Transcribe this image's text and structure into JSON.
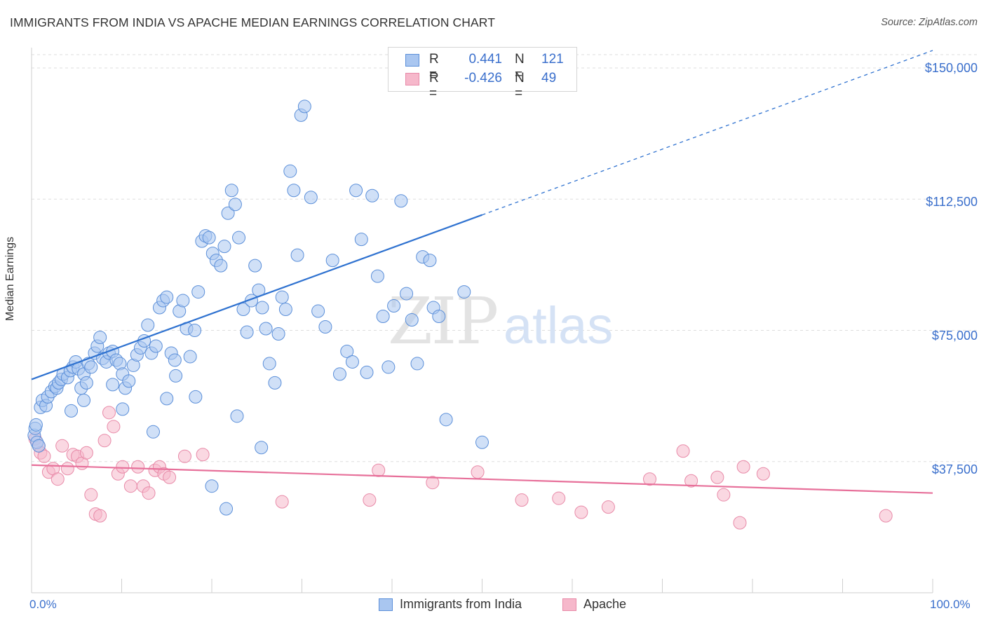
{
  "title": "IMMIGRANTS FROM INDIA VS APACHE MEDIAN EARNINGS CORRELATION CHART",
  "source": "Source: ZipAtlas.com",
  "watermark": {
    "zip": "ZIP",
    "atlas": "atlas"
  },
  "colors": {
    "blue_fill": "#a9c6f0",
    "blue_stroke": "#5b8fd9",
    "blue_line": "#2f72d0",
    "pink_fill": "#f6b8cb",
    "pink_stroke": "#e88aa8",
    "pink_line": "#e7709a",
    "grid": "#dddddd",
    "accent_text": "#3a6fcc"
  },
  "legend_top": {
    "rows": [
      {
        "r_label": "R =",
        "r_value": "0.441",
        "n_label": "N =",
        "n_value": "121",
        "color": "#a9c6f0",
        "stroke": "#5b8fd9"
      },
      {
        "r_label": "R =",
        "r_value": "-0.426",
        "n_label": "N =",
        "n_value": "49",
        "color": "#f6b8cb",
        "stroke": "#e88aa8"
      }
    ]
  },
  "legend_bottom": [
    {
      "label": "Immigrants from India",
      "color": "#a9c6f0",
      "stroke": "#5b8fd9"
    },
    {
      "label": "Apache",
      "color": "#f6b8cb",
      "stroke": "#e88aa8"
    }
  ],
  "chart_data": {
    "type": "scatter",
    "title": "IMMIGRANTS FROM INDIA VS APACHE MEDIAN EARNINGS CORRELATION CHART",
    "xlabel": "",
    "ylabel": "Median Earnings",
    "xlim": [
      0,
      100
    ],
    "ylim": [
      0,
      160000
    ],
    "x_tick_labels": [
      "0.0%",
      "100.0%"
    ],
    "y_ticks": [
      37500,
      75000,
      112500,
      150000
    ],
    "y_tick_labels": [
      "$37,500",
      "$75,000",
      "$112,500",
      "$150,000"
    ],
    "grid": true,
    "legend_position": "top-center",
    "series": [
      {
        "name": "Immigrants from India",
        "trend": {
          "x": [
            0,
            50
          ],
          "y": [
            61000,
            108000
          ],
          "dashed_extension_to": [
            100,
            155000
          ]
        },
        "points": [
          [
            0.3,
            45000
          ],
          [
            0.4,
            47000
          ],
          [
            0.6,
            43000
          ],
          [
            0.8,
            42000
          ],
          [
            0.5,
            48000
          ],
          [
            1.0,
            53000
          ],
          [
            1.2,
            55000
          ],
          [
            1.6,
            53500
          ],
          [
            1.8,
            56000
          ],
          [
            2.2,
            57500
          ],
          [
            2.6,
            59000
          ],
          [
            2.8,
            58500
          ],
          [
            3.0,
            60000
          ],
          [
            3.3,
            61000
          ],
          [
            3.5,
            62500
          ],
          [
            4.0,
            61500
          ],
          [
            4.3,
            63500
          ],
          [
            4.6,
            64500
          ],
          [
            4.9,
            66000
          ],
          [
            5.2,
            64000
          ],
          [
            5.5,
            58500
          ],
          [
            5.8,
            62500
          ],
          [
            6.1,
            60000
          ],
          [
            6.3,
            65500
          ],
          [
            6.6,
            64500
          ],
          [
            7.0,
            68500
          ],
          [
            7.3,
            70500
          ],
          [
            7.6,
            73000
          ],
          [
            7.9,
            67000
          ],
          [
            8.3,
            66000
          ],
          [
            8.6,
            68500
          ],
          [
            9.0,
            69000
          ],
          [
            9.4,
            66500
          ],
          [
            9.8,
            65500
          ],
          [
            10.1,
            62500
          ],
          [
            10.4,
            58500
          ],
          [
            10.8,
            60500
          ],
          [
            11.3,
            65000
          ],
          [
            11.7,
            68000
          ],
          [
            12.1,
            70000
          ],
          [
            12.5,
            72000
          ],
          [
            12.9,
            76500
          ],
          [
            13.3,
            68500
          ],
          [
            13.8,
            70500
          ],
          [
            14.2,
            81500
          ],
          [
            14.6,
            83500
          ],
          [
            15.0,
            84500
          ],
          [
            15.5,
            68500
          ],
          [
            15.9,
            66500
          ],
          [
            16.4,
            80500
          ],
          [
            16.8,
            83500
          ],
          [
            17.2,
            75500
          ],
          [
            17.6,
            67500
          ],
          [
            18.1,
            75000
          ],
          [
            18.5,
            86000
          ],
          [
            18.9,
            100500
          ],
          [
            19.3,
            102000
          ],
          [
            19.7,
            101500
          ],
          [
            20.1,
            97000
          ],
          [
            20.5,
            95000
          ],
          [
            21.0,
            93500
          ],
          [
            21.4,
            99000
          ],
          [
            21.8,
            108500
          ],
          [
            22.2,
            115000
          ],
          [
            22.6,
            111000
          ],
          [
            23.0,
            101500
          ],
          [
            23.5,
            81000
          ],
          [
            23.9,
            74500
          ],
          [
            24.4,
            83500
          ],
          [
            24.8,
            93500
          ],
          [
            25.2,
            86500
          ],
          [
            25.6,
            81500
          ],
          [
            26.0,
            75500
          ],
          [
            26.4,
            65500
          ],
          [
            27.0,
            60000
          ],
          [
            27.4,
            74000
          ],
          [
            27.8,
            84500
          ],
          [
            28.2,
            81000
          ],
          [
            28.7,
            120500
          ],
          [
            29.1,
            115000
          ],
          [
            29.5,
            96500
          ],
          [
            29.9,
            136500
          ],
          [
            30.3,
            139000
          ],
          [
            31.0,
            113000
          ],
          [
            31.8,
            80500
          ],
          [
            32.6,
            76000
          ],
          [
            33.4,
            95000
          ],
          [
            34.2,
            62500
          ],
          [
            35.0,
            69000
          ],
          [
            35.6,
            66000
          ],
          [
            36.0,
            115000
          ],
          [
            36.6,
            101000
          ],
          [
            37.2,
            63000
          ],
          [
            37.8,
            113500
          ],
          [
            38.4,
            90500
          ],
          [
            39.0,
            79000
          ],
          [
            39.6,
            64500
          ],
          [
            40.2,
            82000
          ],
          [
            41.0,
            112000
          ],
          [
            41.6,
            85500
          ],
          [
            42.2,
            78000
          ],
          [
            42.8,
            65500
          ],
          [
            43.4,
            96000
          ],
          [
            44.2,
            95000
          ],
          [
            44.6,
            81500
          ],
          [
            45.2,
            79000
          ],
          [
            46.0,
            49500
          ],
          [
            48.0,
            86000
          ],
          [
            50.0,
            43000
          ],
          [
            4.4,
            52000
          ],
          [
            10.1,
            52500
          ],
          [
            13.5,
            46000
          ],
          [
            15.0,
            55500
          ],
          [
            16.0,
            62000
          ],
          [
            18.2,
            56000
          ],
          [
            20.0,
            30500
          ],
          [
            21.6,
            24000
          ],
          [
            22.8,
            50500
          ],
          [
            25.5,
            41500
          ],
          [
            9.0,
            59500
          ],
          [
            5.8,
            55000
          ]
        ]
      },
      {
        "name": "Apache",
        "trend": {
          "x": [
            0,
            100
          ],
          "y": [
            36500,
            28500
          ]
        },
        "points": [
          [
            0.4,
            44000
          ],
          [
            0.8,
            42000
          ],
          [
            1.0,
            40000
          ],
          [
            1.4,
            39000
          ],
          [
            1.9,
            34500
          ],
          [
            2.4,
            35500
          ],
          [
            2.9,
            32500
          ],
          [
            3.4,
            42000
          ],
          [
            4.0,
            35500
          ],
          [
            4.6,
            39500
          ],
          [
            5.1,
            39000
          ],
          [
            5.6,
            37000
          ],
          [
            6.1,
            40000
          ],
          [
            6.6,
            28000
          ],
          [
            7.1,
            22500
          ],
          [
            7.6,
            22000
          ],
          [
            8.1,
            43500
          ],
          [
            8.6,
            51500
          ],
          [
            9.1,
            47500
          ],
          [
            9.6,
            34000
          ],
          [
            10.1,
            36000
          ],
          [
            11.0,
            30500
          ],
          [
            11.8,
            36000
          ],
          [
            12.4,
            30500
          ],
          [
            13.0,
            28500
          ],
          [
            13.7,
            35000
          ],
          [
            14.2,
            36000
          ],
          [
            14.7,
            34000
          ],
          [
            15.3,
            33000
          ],
          [
            17.0,
            39000
          ],
          [
            19.0,
            39500
          ],
          [
            27.8,
            26000
          ],
          [
            37.5,
            26500
          ],
          [
            38.5,
            35000
          ],
          [
            44.5,
            31500
          ],
          [
            49.5,
            34500
          ],
          [
            54.4,
            26500
          ],
          [
            58.5,
            27000
          ],
          [
            61.0,
            23000
          ],
          [
            64.0,
            24500
          ],
          [
            68.6,
            32500
          ],
          [
            72.3,
            40500
          ],
          [
            73.2,
            32000
          ],
          [
            76.1,
            33000
          ],
          [
            76.8,
            28000
          ],
          [
            78.6,
            20000
          ],
          [
            79.0,
            36000
          ],
          [
            81.2,
            34000
          ],
          [
            94.8,
            22000
          ]
        ]
      }
    ]
  }
}
